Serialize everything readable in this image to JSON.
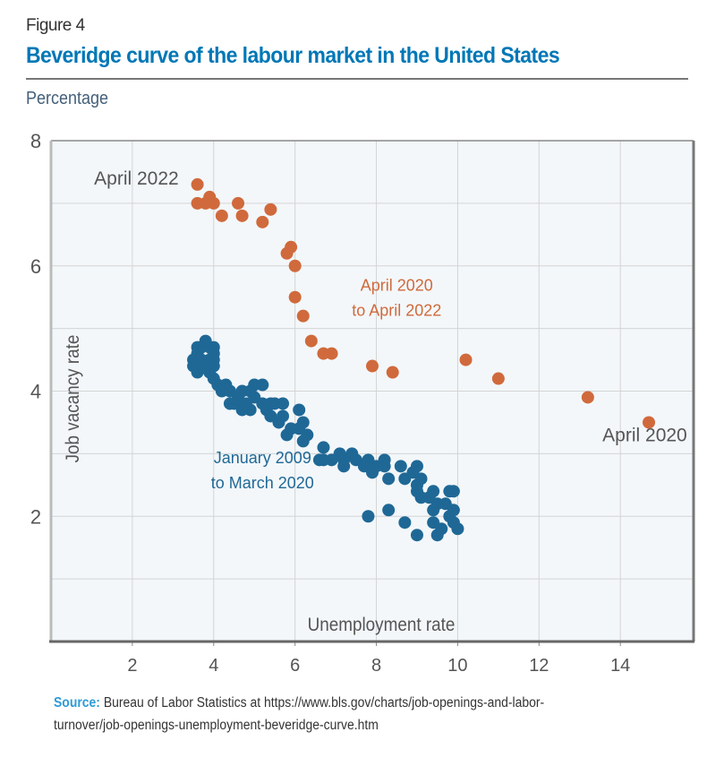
{
  "figure_label": "Figure 4",
  "title": "Beveridge curve of the labour market in the United States",
  "subtitle": "Percentage",
  "source": {
    "label": "Source:",
    "line1": "Bureau of Labor Statistics at https://www.bls.gov/charts/job-openings-and-labor-",
    "line2": "turnover/job-openings-unemployment-beveridge-curve.htm"
  },
  "chart_data": {
    "type": "scatter",
    "title": "Beveridge curve of the labour market in the United States",
    "xlabel": "Unemployment rate",
    "ylabel": "Job vacancy rate",
    "xlim": [
      0,
      15.8
    ],
    "ylim": [
      0,
      8
    ],
    "xticks": [
      2,
      4,
      6,
      8,
      10,
      12,
      14
    ],
    "yticks": [
      2,
      4,
      6,
      8
    ],
    "grid": true,
    "legend": "none",
    "colors": {
      "plot_bg": "#f3f7fa",
      "grid": "#d4d4d4",
      "axis": "#666666",
      "orange": "#d06a3c",
      "blue": "#1f6896"
    },
    "annotations": [
      {
        "text": "April 2022",
        "x": 2.1,
        "y": 7.3,
        "color": "#555555"
      },
      {
        "text": "April 2020",
        "x": 14.6,
        "y": 3.2,
        "color": "#555555"
      },
      {
        "text": "April 2020",
        "x": 8.5,
        "y": 5.6,
        "color": "#d06a3c"
      },
      {
        "text": "to April 2022",
        "x": 8.5,
        "y": 5.2,
        "color": "#d06a3c"
      },
      {
        "text": "January 2009",
        "x": 5.2,
        "y": 2.85,
        "color": "#1f6896"
      },
      {
        "text": "to March 2020",
        "x": 5.2,
        "y": 2.45,
        "color": "#1f6896"
      }
    ],
    "series": [
      {
        "name": "April 2020 to April 2022",
        "color": "#d06a3c",
        "points": [
          [
            14.7,
            3.5
          ],
          [
            13.2,
            3.9
          ],
          [
            11.0,
            4.2
          ],
          [
            10.2,
            4.5
          ],
          [
            8.4,
            4.3
          ],
          [
            7.9,
            4.4
          ],
          [
            6.9,
            4.6
          ],
          [
            6.7,
            4.6
          ],
          [
            6.4,
            4.8
          ],
          [
            6.2,
            5.2
          ],
          [
            6.0,
            5.5
          ],
          [
            6.0,
            6.0
          ],
          [
            5.9,
            6.3
          ],
          [
            5.8,
            6.2
          ],
          [
            5.4,
            6.9
          ],
          [
            5.2,
            6.7
          ],
          [
            4.7,
            6.8
          ],
          [
            4.6,
            7.0
          ],
          [
            4.2,
            6.8
          ],
          [
            4.0,
            7.0
          ],
          [
            3.9,
            7.1
          ],
          [
            3.8,
            7.0
          ],
          [
            3.6,
            7.0
          ],
          [
            3.6,
            7.3
          ]
        ]
      },
      {
        "name": "January 2009 to March 2020",
        "color": "#1f6896",
        "points": [
          [
            7.8,
            2.0
          ],
          [
            8.3,
            2.1
          ],
          [
            8.7,
            1.9
          ],
          [
            9.0,
            1.7
          ],
          [
            9.4,
            1.9
          ],
          [
            9.5,
            1.7
          ],
          [
            9.6,
            1.8
          ],
          [
            9.8,
            2.0
          ],
          [
            9.9,
            1.9
          ],
          [
            10.0,
            1.8
          ],
          [
            9.9,
            2.1
          ],
          [
            9.8,
            2.4
          ],
          [
            9.9,
            2.4
          ],
          [
            9.7,
            2.2
          ],
          [
            9.5,
            2.2
          ],
          [
            9.4,
            2.4
          ],
          [
            9.4,
            2.1
          ],
          [
            9.3,
            2.3
          ],
          [
            9.1,
            2.3
          ],
          [
            9.0,
            2.5
          ],
          [
            9.0,
            2.8
          ],
          [
            9.0,
            2.4
          ],
          [
            9.1,
            2.6
          ],
          [
            8.9,
            2.7
          ],
          [
            8.7,
            2.6
          ],
          [
            8.6,
            2.8
          ],
          [
            8.3,
            2.6
          ],
          [
            8.2,
            2.8
          ],
          [
            8.2,
            2.9
          ],
          [
            8.0,
            2.8
          ],
          [
            7.9,
            2.7
          ],
          [
            7.8,
            2.9
          ],
          [
            7.7,
            2.8
          ],
          [
            7.5,
            2.9
          ],
          [
            7.4,
            3.0
          ],
          [
            7.2,
            2.9
          ],
          [
            7.2,
            2.8
          ],
          [
            7.1,
            3.0
          ],
          [
            6.9,
            2.9
          ],
          [
            6.7,
            2.9
          ],
          [
            6.7,
            3.1
          ],
          [
            6.6,
            2.9
          ],
          [
            6.3,
            3.3
          ],
          [
            6.2,
            3.2
          ],
          [
            6.2,
            3.5
          ],
          [
            6.1,
            3.7
          ],
          [
            6.1,
            3.4
          ],
          [
            5.9,
            3.4
          ],
          [
            5.8,
            3.3
          ],
          [
            5.7,
            3.6
          ],
          [
            5.6,
            3.5
          ],
          [
            5.7,
            3.8
          ],
          [
            5.5,
            3.8
          ],
          [
            5.4,
            3.6
          ],
          [
            5.4,
            3.8
          ],
          [
            5.3,
            3.7
          ],
          [
            5.2,
            3.8
          ],
          [
            5.2,
            4.1
          ],
          [
            5.0,
            4.1
          ],
          [
            5.0,
            3.9
          ],
          [
            4.9,
            3.7
          ],
          [
            4.9,
            4.0
          ],
          [
            4.8,
            3.8
          ],
          [
            4.7,
            4.0
          ],
          [
            4.7,
            3.7
          ],
          [
            4.6,
            3.9
          ],
          [
            4.5,
            3.8
          ],
          [
            4.4,
            4.0
          ],
          [
            4.4,
            3.8
          ],
          [
            4.3,
            4.1
          ],
          [
            4.2,
            4.0
          ],
          [
            4.1,
            4.1
          ],
          [
            4.0,
            4.2
          ],
          [
            4.0,
            4.4
          ],
          [
            3.9,
            4.3
          ],
          [
            3.8,
            4.4
          ],
          [
            3.7,
            4.4
          ],
          [
            3.6,
            4.3
          ],
          [
            3.5,
            4.4
          ],
          [
            3.5,
            4.5
          ],
          [
            3.6,
            4.6
          ],
          [
            3.7,
            4.7
          ],
          [
            3.8,
            4.8
          ],
          [
            3.9,
            4.7
          ],
          [
            4.0,
            4.7
          ],
          [
            4.0,
            4.6
          ],
          [
            3.9,
            4.5
          ],
          [
            3.7,
            4.5
          ],
          [
            3.6,
            4.7
          ],
          [
            4.0,
            4.5
          ]
        ]
      }
    ]
  }
}
